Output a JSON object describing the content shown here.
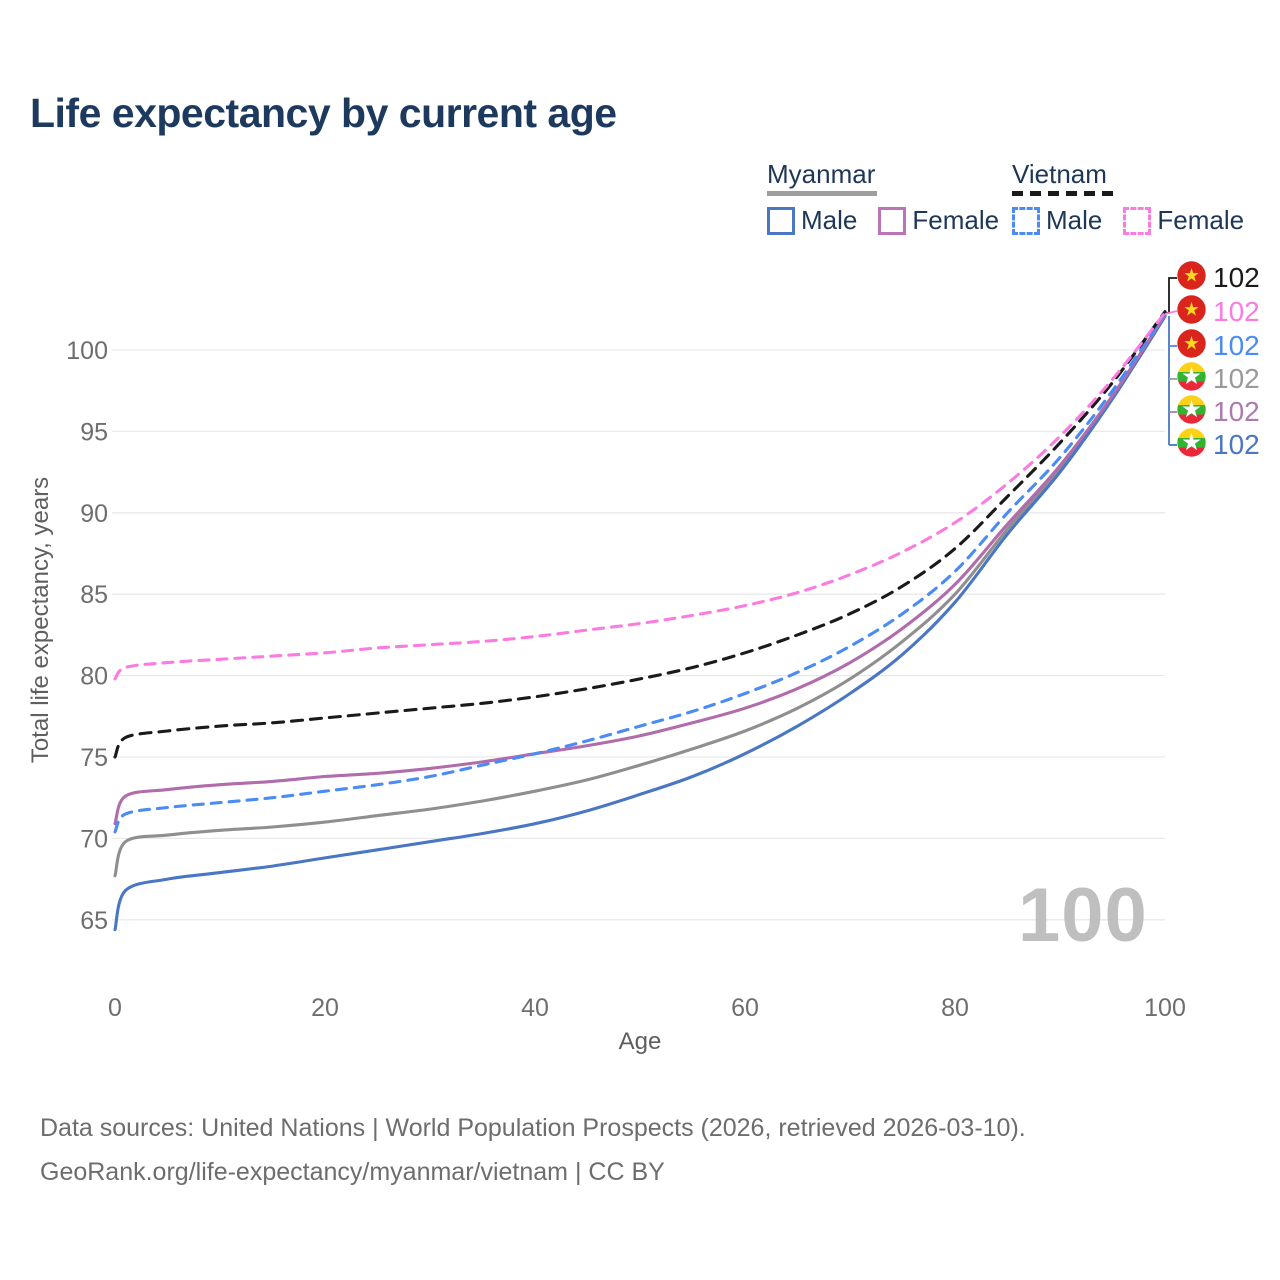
{
  "title": "Life expectancy by current age",
  "legend": {
    "groups": [
      {
        "label": "Myanmar",
        "line_style": "solid",
        "underline_color": "#9e9e9e",
        "items": [
          {
            "label": "Male",
            "color": "#4a77c4",
            "line_style": "solid"
          },
          {
            "label": "Female",
            "color": "#bb74b8",
            "line_style": "solid"
          }
        ]
      },
      {
        "label": "Vietnam",
        "line_style": "dashed",
        "underline_color": "#1a1a1a",
        "items": [
          {
            "label": "Male",
            "color": "#4b8bf5",
            "line_style": "dashed"
          },
          {
            "label": "Female",
            "color": "#fb7ce0",
            "line_style": "dashed"
          }
        ]
      }
    ]
  },
  "chart_data": {
    "type": "line",
    "title": "Life expectancy by current age",
    "xlabel": "Age",
    "ylabel": "Total life expectancy, years",
    "x_range": [
      0,
      100
    ],
    "xticks": [
      0,
      20,
      40,
      60,
      80,
      100
    ],
    "y_gridlines": [
      65,
      70,
      75,
      80,
      85,
      90,
      95,
      100
    ],
    "grid": "horizontal",
    "watermark": "100",
    "series": [
      {
        "name": "Myanmar total",
        "country": "Myanmar",
        "sex": "both",
        "color": "#8f8f8f",
        "dash": null,
        "points": [
          [
            0,
            67.7
          ],
          [
            1,
            69.8
          ],
          [
            5,
            70.2
          ],
          [
            10,
            70.5
          ],
          [
            15,
            70.7
          ],
          [
            20,
            71.0
          ],
          [
            25,
            71.4
          ],
          [
            30,
            71.8
          ],
          [
            35,
            72.3
          ],
          [
            40,
            72.9
          ],
          [
            45,
            73.6
          ],
          [
            50,
            74.5
          ],
          [
            55,
            75.5
          ],
          [
            60,
            76.6
          ],
          [
            65,
            78.0
          ],
          [
            70,
            79.8
          ],
          [
            75,
            82.1
          ],
          [
            80,
            85.0
          ],
          [
            85,
            89.0
          ],
          [
            90,
            92.7
          ],
          [
            95,
            97.1
          ],
          [
            100,
            102.1
          ]
        ]
      },
      {
        "name": "Myanmar male",
        "country": "Myanmar",
        "sex": "male",
        "color": "#4a77c4",
        "dash": null,
        "points": [
          [
            0,
            64.4
          ],
          [
            1,
            66.8
          ],
          [
            5,
            67.5
          ],
          [
            10,
            67.9
          ],
          [
            15,
            68.3
          ],
          [
            20,
            68.8
          ],
          [
            25,
            69.3
          ],
          [
            30,
            69.8
          ],
          [
            35,
            70.3
          ],
          [
            40,
            70.9
          ],
          [
            45,
            71.7
          ],
          [
            50,
            72.7
          ],
          [
            55,
            73.8
          ],
          [
            60,
            75.2
          ],
          [
            65,
            76.9
          ],
          [
            70,
            78.9
          ],
          [
            75,
            81.3
          ],
          [
            80,
            84.5
          ],
          [
            85,
            88.7
          ],
          [
            90,
            92.5
          ],
          [
            95,
            97.0
          ],
          [
            100,
            102.05
          ]
        ]
      },
      {
        "name": "Myanmar female",
        "country": "Myanmar",
        "sex": "female",
        "color": "#b06cab",
        "dash": null,
        "points": [
          [
            0,
            70.9
          ],
          [
            1,
            72.6
          ],
          [
            5,
            73.0
          ],
          [
            10,
            73.3
          ],
          [
            15,
            73.5
          ],
          [
            20,
            73.8
          ],
          [
            25,
            74.0
          ],
          [
            30,
            74.3
          ],
          [
            35,
            74.7
          ],
          [
            40,
            75.2
          ],
          [
            45,
            75.7
          ],
          [
            50,
            76.3
          ],
          [
            55,
            77.1
          ],
          [
            60,
            78.0
          ],
          [
            65,
            79.2
          ],
          [
            70,
            80.8
          ],
          [
            75,
            82.9
          ],
          [
            80,
            85.6
          ],
          [
            85,
            89.3
          ],
          [
            90,
            92.9
          ],
          [
            95,
            97.2
          ],
          [
            100,
            102.15
          ]
        ]
      },
      {
        "name": "Vietnam male",
        "country": "Vietnam",
        "sex": "male",
        "color": "#4b8bf5",
        "dash": "10 8",
        "points": [
          [
            0,
            70.4
          ],
          [
            1,
            71.5
          ],
          [
            5,
            71.9
          ],
          [
            10,
            72.2
          ],
          [
            15,
            72.5
          ],
          [
            20,
            72.9
          ],
          [
            25,
            73.3
          ],
          [
            30,
            73.8
          ],
          [
            35,
            74.5
          ],
          [
            40,
            75.2
          ],
          [
            45,
            76.0
          ],
          [
            50,
            76.9
          ],
          [
            55,
            77.8
          ],
          [
            60,
            78.9
          ],
          [
            65,
            80.2
          ],
          [
            70,
            81.8
          ],
          [
            75,
            83.8
          ],
          [
            80,
            86.4
          ],
          [
            85,
            90.0
          ],
          [
            90,
            93.4
          ],
          [
            95,
            97.5
          ],
          [
            100,
            102.2
          ]
        ]
      },
      {
        "name": "Vietnam total",
        "country": "Vietnam",
        "sex": "both",
        "color": "#1a1a1a",
        "dash": "11 8",
        "points": [
          [
            0,
            75.0
          ],
          [
            1,
            76.2
          ],
          [
            5,
            76.6
          ],
          [
            10,
            76.9
          ],
          [
            15,
            77.1
          ],
          [
            20,
            77.4
          ],
          [
            25,
            77.7
          ],
          [
            30,
            78.0
          ],
          [
            35,
            78.3
          ],
          [
            40,
            78.7
          ],
          [
            45,
            79.2
          ],
          [
            50,
            79.8
          ],
          [
            55,
            80.5
          ],
          [
            60,
            81.4
          ],
          [
            65,
            82.5
          ],
          [
            70,
            83.8
          ],
          [
            75,
            85.5
          ],
          [
            80,
            87.8
          ],
          [
            85,
            91.0
          ],
          [
            90,
            94.3
          ],
          [
            95,
            98.0
          ],
          [
            100,
            102.35
          ]
        ]
      },
      {
        "name": "Vietnam female",
        "country": "Vietnam",
        "sex": "female",
        "color": "#fb7ce0",
        "dash": "10 8",
        "points": [
          [
            0,
            79.8
          ],
          [
            1,
            80.5
          ],
          [
            5,
            80.8
          ],
          [
            10,
            81.0
          ],
          [
            15,
            81.2
          ],
          [
            20,
            81.4
          ],
          [
            25,
            81.7
          ],
          [
            30,
            81.9
          ],
          [
            35,
            82.1
          ],
          [
            40,
            82.4
          ],
          [
            45,
            82.8
          ],
          [
            50,
            83.2
          ],
          [
            55,
            83.7
          ],
          [
            60,
            84.3
          ],
          [
            65,
            85.1
          ],
          [
            70,
            86.2
          ],
          [
            75,
            87.6
          ],
          [
            80,
            89.4
          ],
          [
            85,
            91.8
          ],
          [
            90,
            94.7
          ],
          [
            95,
            98.2
          ],
          [
            100,
            102.3
          ]
        ]
      }
    ],
    "endpoints": [
      {
        "value": "102",
        "flag": "vietnam",
        "series": "Vietnam total",
        "color": "#1a1a1a"
      },
      {
        "value": "102",
        "flag": "vietnam",
        "series": "Vietnam female",
        "color": "#fb7ce0"
      },
      {
        "value": "102",
        "flag": "vietnam",
        "series": "Vietnam male",
        "color": "#4b8bf5"
      },
      {
        "value": "102",
        "flag": "myanmar",
        "series": "Myanmar total",
        "color": "#9a9a9a"
      },
      {
        "value": "102",
        "flag": "myanmar",
        "series": "Myanmar female",
        "color": "#ad7ab0"
      },
      {
        "value": "102",
        "flag": "myanmar",
        "series": "Myanmar male",
        "color": "#4a77c4"
      }
    ],
    "flag_colors": {
      "vietnam": {
        "bg": "#da251d",
        "star": "#ffd821"
      },
      "myanmar": {
        "stripes": [
          "#fcd116",
          "#34b232",
          "#ea2839"
        ],
        "star": "#ffffff"
      }
    }
  },
  "footer": {
    "line1": "Data sources: United Nations | World Population Prospects (2026, retrieved 2026-03-10).",
    "line2": "GeoRank.org/life-expectancy/myanmar/vietnam | CC BY"
  }
}
